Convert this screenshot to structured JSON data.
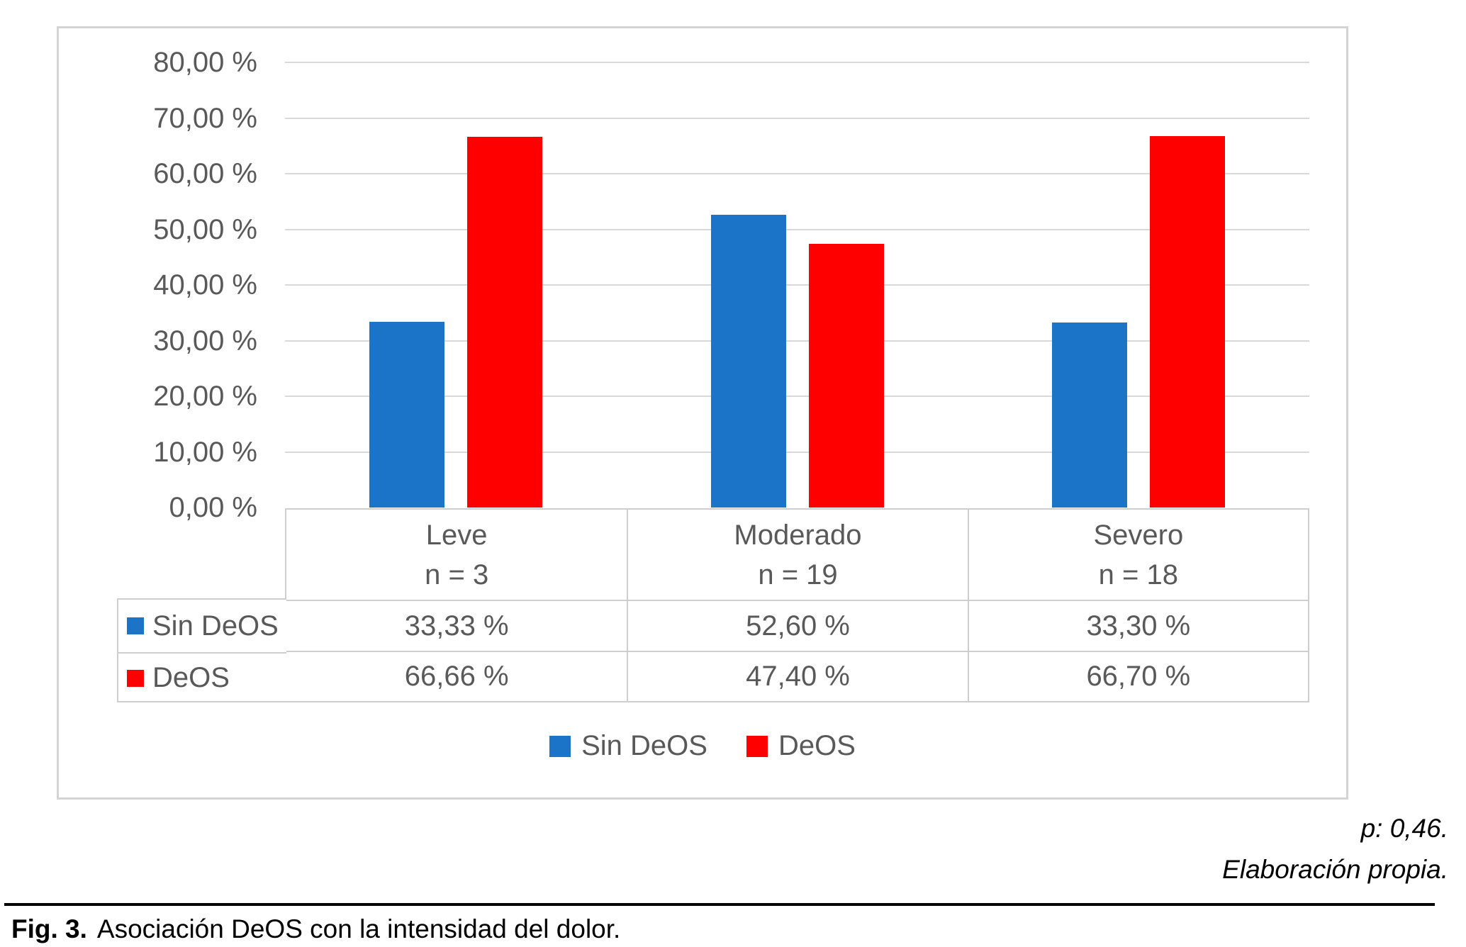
{
  "chart_data": {
    "type": "bar",
    "title": "",
    "categories": [
      "Leve",
      "Moderado",
      "Severo"
    ],
    "category_counts": [
      "n = 3",
      "n = 19",
      "n = 18"
    ],
    "series": [
      {
        "name": "Sin DeOS",
        "color": "#1b74c8",
        "values": [
          33.33,
          52.6,
          33.3
        ],
        "value_labels": [
          "33,33 %",
          "52,60 %",
          "33,30 %"
        ]
      },
      {
        "name": "DeOS",
        "color": "#ff0000",
        "values": [
          66.66,
          47.4,
          66.7
        ],
        "value_labels": [
          "66,66 %",
          "47,40 %",
          "66,70 %"
        ]
      }
    ],
    "xlabel": "",
    "ylabel": "",
    "ylim": [
      0,
      80
    ],
    "ytick_step": 10,
    "ytick_labels": [
      "0,00 %",
      "10,00 %",
      "20,00 %",
      "30,00 %",
      "40,00 %",
      "50,00 %",
      "60,00 %",
      "70,00 %",
      "80,00 %"
    ],
    "grid": true,
    "legend_position": "bottom",
    "has_data_table": true
  },
  "notes": {
    "p_value": "p: 0,46.",
    "source": "Elaboración propia."
  },
  "caption": {
    "prefix": "Fig. 3.",
    "text": "Asociación DeOS con la intensidad del dolor."
  },
  "colors": {
    "series_blue": "#1b74c8",
    "series_red": "#ff0000",
    "chart_text": "#595959",
    "gridline": "#d9d9d9",
    "table_border": "#cfcece",
    "panel_border": "#d4d4d4",
    "annotation_text": "#000000"
  }
}
